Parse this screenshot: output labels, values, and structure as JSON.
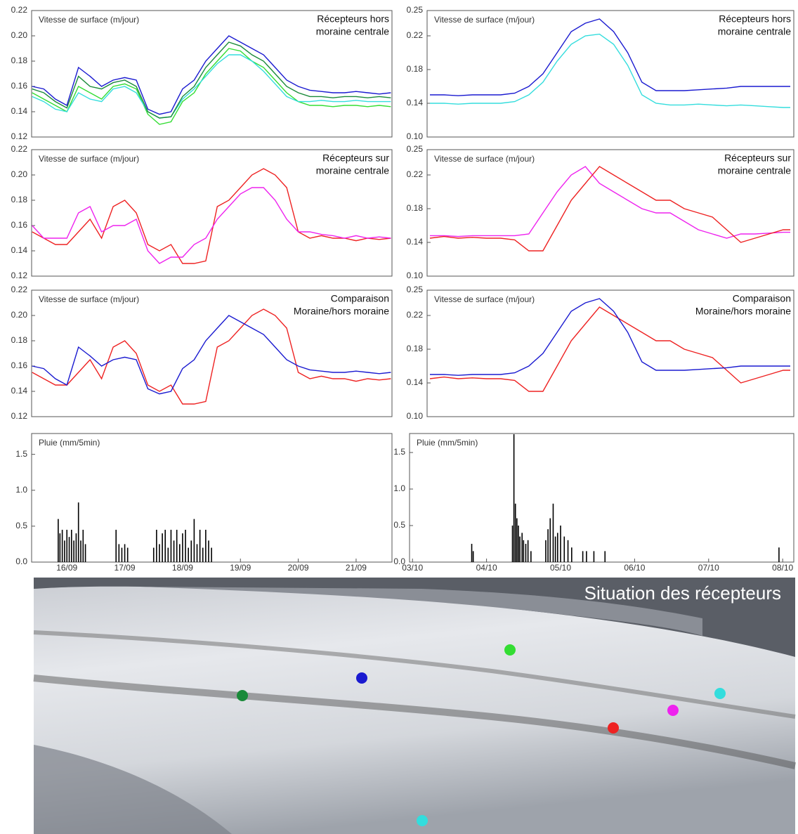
{
  "chart_data": [
    {
      "type": "line",
      "ylabel": "Vitesse de surface (m/jour)",
      "annotation": [
        "Récepteurs hors",
        "moraine centrale"
      ],
      "xlim": [
        15.39,
        21.62
      ],
      "ylim": [
        0.12,
        0.22
      ],
      "yticks": [
        0.12,
        0.14,
        0.16,
        0.18,
        {
          "value": 0.2,
          "label": "0.20"
        },
        0.22
      ],
      "x": [
        15.4,
        15.6,
        15.8,
        16.0,
        16.2,
        16.4,
        16.6,
        16.8,
        17.0,
        17.2,
        17.4,
        17.6,
        17.8,
        18.0,
        18.2,
        18.4,
        18.6,
        18.8,
        19.0,
        19.2,
        19.4,
        19.6,
        19.8,
        20.0,
        20.2,
        20.4,
        20.6,
        20.8,
        21.0,
        21.2,
        21.4,
        21.6
      ],
      "series": [
        {
          "color": "#33dd33",
          "values": [
            0.155,
            0.15,
            0.145,
            0.14,
            0.16,
            0.155,
            0.15,
            0.16,
            0.162,
            0.158,
            0.138,
            0.13,
            0.132,
            0.148,
            0.155,
            0.17,
            0.18,
            0.19,
            0.188,
            0.18,
            0.175,
            0.165,
            0.155,
            0.148,
            0.145,
            0.145,
            0.144,
            0.145,
            0.145,
            0.144,
            0.145,
            0.144
          ]
        },
        {
          "color": "#33dddd",
          "values": [
            0.152,
            0.148,
            0.142,
            0.14,
            0.155,
            0.15,
            0.148,
            0.158,
            0.16,
            0.155,
            0.14,
            0.135,
            0.136,
            0.15,
            0.158,
            0.168,
            0.178,
            0.185,
            0.185,
            0.18,
            0.172,
            0.162,
            0.152,
            0.148,
            0.148,
            0.149,
            0.148,
            0.148,
            0.149,
            0.148,
            0.148,
            0.148
          ]
        },
        {
          "color": "#1a8a3a",
          "values": [
            0.158,
            0.155,
            0.148,
            0.143,
            0.168,
            0.16,
            0.158,
            0.163,
            0.165,
            0.16,
            0.14,
            0.135,
            0.136,
            0.152,
            0.16,
            0.175,
            0.185,
            0.195,
            0.192,
            0.185,
            0.18,
            0.17,
            0.16,
            0.155,
            0.152,
            0.152,
            0.151,
            0.152,
            0.152,
            0.151,
            0.152,
            0.151
          ]
        },
        {
          "color": "#1a1ad0",
          "values": [
            0.16,
            0.158,
            0.15,
            0.145,
            0.175,
            0.168,
            0.16,
            0.165,
            0.167,
            0.165,
            0.142,
            0.138,
            0.14,
            0.158,
            0.165,
            0.18,
            0.19,
            0.2,
            0.195,
            0.19,
            0.185,
            0.175,
            0.165,
            0.16,
            0.157,
            0.156,
            0.155,
            0.155,
            0.156,
            0.155,
            0.154,
            0.155
          ]
        }
      ]
    },
    {
      "type": "line",
      "ylabel": "Vitesse de surface (m/jour)",
      "annotation": [
        "Récepteurs hors",
        "moraine centrale"
      ],
      "xlim": [
        2.96,
        8.15
      ],
      "ylim": [
        0.1,
        0.25
      ],
      "yticks": [
        {
          "value": 0.1,
          "label": "0.10"
        },
        0.14,
        0.18,
        0.22,
        0.25
      ],
      "x": [
        3.0,
        3.2,
        3.4,
        3.6,
        3.8,
        4.0,
        4.2,
        4.4,
        4.6,
        4.8,
        5.0,
        5.2,
        5.4,
        5.6,
        5.8,
        6.0,
        6.2,
        6.4,
        6.6,
        6.8,
        7.0,
        7.2,
        7.4,
        7.6,
        7.8,
        8.0,
        8.1
      ],
      "series": [
        {
          "color": "#33dddd",
          "values": [
            0.14,
            0.14,
            0.139,
            0.14,
            0.14,
            0.14,
            0.142,
            0.15,
            0.165,
            0.19,
            0.21,
            0.22,
            0.222,
            0.21,
            0.185,
            0.15,
            0.14,
            0.138,
            0.138,
            0.139,
            0.138,
            0.137,
            0.138,
            0.137,
            0.136,
            0.135,
            0.135
          ]
        },
        {
          "color": "#1a1ad0",
          "values": [
            0.15,
            0.15,
            0.149,
            0.15,
            0.15,
            0.15,
            0.152,
            0.16,
            0.175,
            0.2,
            0.225,
            0.235,
            0.24,
            0.225,
            0.2,
            0.165,
            0.155,
            0.155,
            0.155,
            0.156,
            0.157,
            0.158,
            0.16,
            0.16,
            0.16,
            0.16,
            0.16
          ]
        }
      ]
    },
    {
      "type": "line",
      "ylabel": "Vitesse de surface (m/jour)",
      "annotation": [
        "Récepteurs sur",
        "moraine centrale"
      ],
      "xlim": [
        15.39,
        21.62
      ],
      "ylim": [
        0.12,
        0.22
      ],
      "yticks": [
        0.12,
        0.14,
        0.16,
        0.18,
        {
          "value": 0.2,
          "label": "0.20"
        },
        0.22
      ],
      "x": [
        15.4,
        15.6,
        15.8,
        16.0,
        16.2,
        16.4,
        16.6,
        16.8,
        17.0,
        17.2,
        17.4,
        17.6,
        17.8,
        18.0,
        18.2,
        18.4,
        18.6,
        18.8,
        19.0,
        19.2,
        19.4,
        19.6,
        19.8,
        20.0,
        20.2,
        20.4,
        20.6,
        20.8,
        21.0,
        21.2,
        21.4,
        21.6
      ],
      "series": [
        {
          "color": "#ee2222",
          "values": [
            0.155,
            0.15,
            0.145,
            0.145,
            0.155,
            0.165,
            0.15,
            0.175,
            0.18,
            0.17,
            0.145,
            0.14,
            0.145,
            0.13,
            0.13,
            0.132,
            0.175,
            0.18,
            0.19,
            0.2,
            0.205,
            0.2,
            0.19,
            0.155,
            0.15,
            0.152,
            0.15,
            0.15,
            0.148,
            0.15,
            0.149,
            0.15
          ]
        },
        {
          "color": "#ee22ee",
          "values": [
            0.16,
            0.15,
            0.15,
            0.15,
            0.17,
            0.175,
            0.155,
            0.16,
            0.16,
            0.165,
            0.14,
            0.13,
            0.135,
            0.135,
            0.145,
            0.15,
            0.165,
            0.175,
            0.185,
            0.19,
            0.19,
            0.18,
            0.165,
            0.155,
            0.155,
            0.153,
            0.152,
            0.15,
            0.152,
            0.15,
            0.151,
            0.15
          ]
        }
      ]
    },
    {
      "type": "line",
      "ylabel": "Vitesse de surface (m/jour)",
      "annotation": [
        "Récepteurs sur",
        "moraine centrale"
      ],
      "xlim": [
        2.96,
        8.15
      ],
      "ylim": [
        0.1,
        0.25
      ],
      "yticks": [
        {
          "value": 0.1,
          "label": "0.10"
        },
        0.14,
        0.18,
        0.22,
        0.25
      ],
      "x": [
        3.0,
        3.2,
        3.4,
        3.6,
        3.8,
        4.0,
        4.2,
        4.4,
        4.6,
        4.8,
        5.0,
        5.2,
        5.4,
        5.6,
        5.8,
        6.0,
        6.2,
        6.4,
        6.6,
        6.8,
        7.0,
        7.2,
        7.4,
        7.6,
        7.8,
        8.0,
        8.1
      ],
      "series": [
        {
          "color": "#ee22ee",
          "values": [
            0.148,
            0.148,
            0.147,
            0.148,
            0.148,
            0.148,
            0.148,
            0.15,
            0.175,
            0.2,
            0.22,
            0.23,
            0.21,
            0.2,
            0.19,
            0.18,
            0.175,
            0.175,
            0.165,
            0.155,
            0.15,
            0.145,
            0.15,
            0.15,
            0.151,
            0.152,
            0.152
          ]
        },
        {
          "color": "#ee2222",
          "values": [
            0.145,
            0.147,
            0.145,
            0.146,
            0.145,
            0.145,
            0.143,
            0.13,
            0.13,
            0.16,
            0.19,
            0.21,
            0.23,
            0.22,
            0.21,
            0.2,
            0.19,
            0.19,
            0.18,
            0.175,
            0.17,
            0.155,
            0.14,
            0.145,
            0.15,
            0.155,
            0.155
          ]
        }
      ]
    },
    {
      "type": "line",
      "ylabel": "Vitesse de surface (m/jour)",
      "annotation": [
        "Comparaison",
        "Moraine/hors moraine"
      ],
      "xlim": [
        15.39,
        21.62
      ],
      "ylim": [
        0.12,
        0.22
      ],
      "yticks": [
        0.12,
        0.14,
        0.16,
        0.18,
        {
          "value": 0.2,
          "label": "0.20"
        },
        0.22
      ],
      "x": [
        15.4,
        15.6,
        15.8,
        16.0,
        16.2,
        16.4,
        16.6,
        16.8,
        17.0,
        17.2,
        17.4,
        17.6,
        17.8,
        18.0,
        18.2,
        18.4,
        18.6,
        18.8,
        19.0,
        19.2,
        19.4,
        19.6,
        19.8,
        20.0,
        20.2,
        20.4,
        20.6,
        20.8,
        21.0,
        21.2,
        21.4,
        21.6
      ],
      "series": [
        {
          "color": "#ee2222",
          "values": [
            0.155,
            0.15,
            0.145,
            0.145,
            0.155,
            0.165,
            0.15,
            0.175,
            0.18,
            0.17,
            0.145,
            0.14,
            0.145,
            0.13,
            0.13,
            0.132,
            0.175,
            0.18,
            0.19,
            0.2,
            0.205,
            0.2,
            0.19,
            0.155,
            0.15,
            0.152,
            0.15,
            0.15,
            0.148,
            0.15,
            0.149,
            0.15
          ]
        },
        {
          "color": "#1a1ad0",
          "values": [
            0.16,
            0.158,
            0.15,
            0.145,
            0.175,
            0.168,
            0.16,
            0.165,
            0.167,
            0.165,
            0.142,
            0.138,
            0.14,
            0.158,
            0.165,
            0.18,
            0.19,
            0.2,
            0.195,
            0.19,
            0.185,
            0.175,
            0.165,
            0.16,
            0.157,
            0.156,
            0.155,
            0.155,
            0.156,
            0.155,
            0.154,
            0.155
          ]
        }
      ]
    },
    {
      "type": "line",
      "ylabel": "Vitesse de surface (m/jour)",
      "annotation": [
        "Comparaison",
        "Moraine/hors moraine"
      ],
      "xlim": [
        2.96,
        8.15
      ],
      "ylim": [
        0.1,
        0.25
      ],
      "yticks": [
        {
          "value": 0.1,
          "label": "0.10"
        },
        0.14,
        0.18,
        0.22,
        0.25
      ],
      "x": [
        3.0,
        3.2,
        3.4,
        3.6,
        3.8,
        4.0,
        4.2,
        4.4,
        4.6,
        4.8,
        5.0,
        5.2,
        5.4,
        5.6,
        5.8,
        6.0,
        6.2,
        6.4,
        6.6,
        6.8,
        7.0,
        7.2,
        7.4,
        7.6,
        7.8,
        8.0,
        8.1
      ],
      "series": [
        {
          "color": "#ee2222",
          "values": [
            0.145,
            0.147,
            0.145,
            0.146,
            0.145,
            0.145,
            0.143,
            0.13,
            0.13,
            0.16,
            0.19,
            0.21,
            0.23,
            0.22,
            0.21,
            0.2,
            0.19,
            0.19,
            0.18,
            0.175,
            0.17,
            0.155,
            0.14,
            0.145,
            0.15,
            0.155,
            0.155
          ]
        },
        {
          "color": "#1a1ad0",
          "values": [
            0.15,
            0.15,
            0.149,
            0.15,
            0.15,
            0.15,
            0.152,
            0.16,
            0.175,
            0.2,
            0.225,
            0.235,
            0.24,
            0.225,
            0.2,
            0.165,
            0.155,
            0.155,
            0.155,
            0.156,
            0.157,
            0.158,
            0.16,
            0.16,
            0.16,
            0.16,
            0.16
          ]
        }
      ]
    },
    {
      "type": "bar",
      "ylabel": "Pluie (mm/5min)",
      "color": "#000000",
      "xlim": [
        15.39,
        21.62
      ],
      "ylim": [
        0,
        1.79
      ],
      "yticks": [
        {
          "value": 0,
          "label": "0.0"
        },
        0.5,
        {
          "value": 1,
          "label": "1.0"
        },
        1.5
      ],
      "xticks": [
        {
          "value": 16,
          "label": "16/09"
        },
        {
          "value": 17,
          "label": "17/09"
        },
        {
          "value": 18,
          "label": "18/09"
        },
        {
          "value": 19,
          "label": "19/09"
        },
        {
          "value": 20,
          "label": "20/09"
        },
        {
          "value": 21,
          "label": "21/09"
        }
      ],
      "x": [
        15.85,
        15.88,
        15.92,
        15.96,
        16.0,
        16.04,
        16.08,
        16.12,
        16.16,
        16.2,
        16.24,
        16.28,
        16.32,
        16.85,
        16.9,
        16.95,
        17.0,
        17.05,
        17.5,
        17.55,
        17.6,
        17.65,
        17.7,
        17.75,
        17.8,
        17.85,
        17.9,
        17.95,
        18.0,
        18.05,
        18.1,
        18.15,
        18.2,
        18.25,
        18.3,
        18.35,
        18.4,
        18.45,
        18.5
      ],
      "values": [
        0.6,
        0.4,
        0.45,
        0.3,
        0.45,
        0.35,
        0.45,
        0.3,
        0.4,
        0.83,
        0.3,
        0.45,
        0.25,
        0.45,
        0.25,
        0.2,
        0.25,
        0.2,
        0.2,
        0.45,
        0.25,
        0.4,
        0.45,
        0.2,
        0.45,
        0.3,
        0.45,
        0.25,
        0.4,
        0.45,
        0.2,
        0.3,
        0.6,
        0.25,
        0.45,
        0.2,
        0.45,
        0.3,
        0.2
      ]
    },
    {
      "type": "bar",
      "ylabel": "Pluie (mm/5min)",
      "color": "#000000",
      "xlim": [
        2.96,
        8.15
      ],
      "ylim": [
        0,
        1.76
      ],
      "yticks": [
        {
          "value": 0,
          "label": "0.0"
        },
        0.5,
        {
          "value": 1,
          "label": "1.0"
        },
        1.5
      ],
      "xticks": [
        {
          "value": 3,
          "label": "03/10"
        },
        {
          "value": 4,
          "label": "04/10"
        },
        {
          "value": 5,
          "label": "05/10"
        },
        {
          "value": 6,
          "label": "06/10"
        },
        {
          "value": 7,
          "label": "07/10"
        },
        {
          "value": 8,
          "label": "08/10"
        }
      ],
      "x": [
        3.8,
        3.82,
        4.35,
        4.37,
        4.39,
        4.41,
        4.43,
        4.45,
        4.48,
        4.5,
        4.53,
        4.56,
        4.6,
        4.8,
        4.83,
        4.86,
        4.9,
        4.93,
        4.96,
        5.0,
        5.05,
        5.1,
        5.15,
        5.3,
        5.35,
        5.45,
        5.6,
        7.95
      ],
      "values": [
        0.25,
        0.15,
        0.5,
        1.75,
        0.8,
        0.6,
        0.5,
        0.35,
        0.4,
        0.3,
        0.25,
        0.3,
        0.15,
        0.3,
        0.45,
        0.6,
        0.8,
        0.35,
        0.4,
        0.5,
        0.35,
        0.3,
        0.2,
        0.15,
        0.15,
        0.15,
        0.15,
        0.2
      ]
    }
  ],
  "photo": {
    "title": "Situation des récepteurs"
  }
}
